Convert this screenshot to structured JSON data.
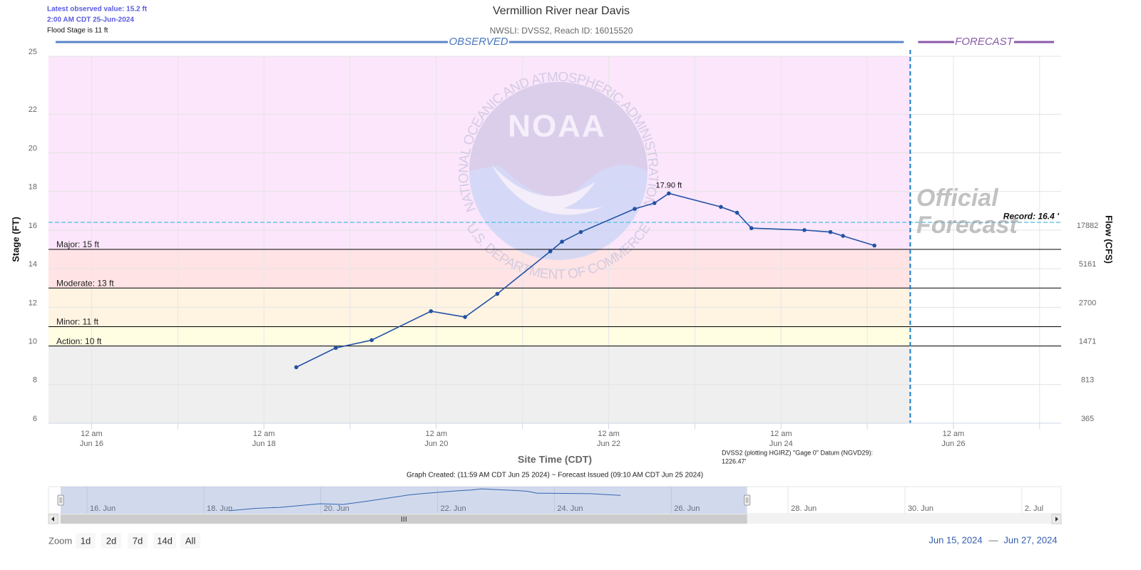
{
  "header": {
    "latest_value": "Latest observed value: 15.2 ft",
    "latest_time": "2:00 AM CDT 25-Jun-2024",
    "flood_stage": "Flood Stage is 11 ft"
  },
  "chart_data": {
    "type": "line",
    "title": "Vermillion River near Davis",
    "subtitle": "NWSLI: DVSS2, Reach ID: 16015520",
    "observed_label": "OBSERVED",
    "forecast_label": "FORECAST",
    "forecast_start": "2024-06-25T11:59",
    "watermark": [
      "Official",
      "Forecast"
    ],
    "logo": {
      "name": "NOAA",
      "top": "NATIONAL OCEANIC AND ATMOSPHERIC ADMINISTRATION",
      "bottom": "U.S. DEPARTMENT OF COMMERCE"
    },
    "ylabel": "Stage (FT)",
    "y2label": "Flow (CFS)",
    "xlabel": "Site Time (CDT)",
    "ylim": [
      6,
      25
    ],
    "yticks": [
      6,
      8,
      10,
      12,
      14,
      16,
      18,
      20,
      22,
      25
    ],
    "flow_ticks": [
      {
        "stage": 6,
        "flow": 365
      },
      {
        "stage": 8,
        "flow": 813
      },
      {
        "stage": 10,
        "flow": 1471
      },
      {
        "stage": 12,
        "flow": 2700
      },
      {
        "stage": 14,
        "flow": 5161
      },
      {
        "stage": 16,
        "flow": 17882
      }
    ],
    "xlim": [
      "2024-06-15T12:00",
      "2024-06-27T06:00"
    ],
    "xticks": [
      {
        "value": "2024-06-16T00:00",
        "time": "12 am",
        "date": "Jun 16"
      },
      {
        "value": "2024-06-18T00:00",
        "time": "12 am",
        "date": "Jun 18"
      },
      {
        "value": "2024-06-20T00:00",
        "time": "12 am",
        "date": "Jun 20"
      },
      {
        "value": "2024-06-22T00:00",
        "time": "12 am",
        "date": "Jun 22"
      },
      {
        "value": "2024-06-24T00:00",
        "time": "12 am",
        "date": "Jun 24"
      },
      {
        "value": "2024-06-26T00:00",
        "time": "12 am",
        "date": "Jun 26"
      }
    ],
    "xminorticks": [
      "2024-06-17T00:00",
      "2024-06-19T00:00",
      "2024-06-21T00:00",
      "2024-06-23T00:00",
      "2024-06-25T00:00",
      "2024-06-27T00:00"
    ],
    "grid": true,
    "base_band_color": "#efefef",
    "flood_bands": [
      {
        "label": "Action: 10 ft",
        "value": 10,
        "color": "#fffde2"
      },
      {
        "label": "Minor: 11 ft",
        "value": 11,
        "color": "#fff3e2"
      },
      {
        "label": "Moderate: 13 ft",
        "value": 13,
        "color": "#ffe3e5"
      },
      {
        "label": "Major: 15 ft",
        "value": 15,
        "color": "#fbe6fb"
      }
    ],
    "record": {
      "value": 16.4,
      "label": "Record: 16.4 '",
      "color": "#6cc3ea"
    },
    "series": [
      {
        "color": "#2352a4",
        "x": [
          "2024-06-18T09:00",
          "2024-06-18T20:00",
          "2024-06-19T06:00",
          "2024-06-19T22:30",
          "2024-06-20T08:00",
          "2024-06-20T17:00",
          "2024-06-21T07:45",
          "2024-06-21T11:00",
          "2024-06-21T16:15",
          "2024-06-22T07:15",
          "2024-06-22T12:45",
          "2024-06-22T16:45",
          "2024-06-23T07:15",
          "2024-06-23T11:45",
          "2024-06-23T15:45",
          "2024-06-24T06:30",
          "2024-06-24T13:45",
          "2024-06-24T17:15",
          "2024-06-25T02:00"
        ],
        "values": [
          8.9,
          9.9,
          10.3,
          11.8,
          11.5,
          12.7,
          14.9,
          15.4,
          15.9,
          17.1,
          17.4,
          17.9,
          17.2,
          16.9,
          16.1,
          16.0,
          15.9,
          15.7,
          15.2
        ],
        "value_labels": [
          null,
          null,
          null,
          null,
          null,
          null,
          null,
          null,
          null,
          null,
          null,
          "17.90 ft",
          null,
          null,
          null,
          null,
          null,
          null,
          null
        ]
      }
    ],
    "datum_note": [
      "DVSS2 (plotting HGIRZ) \"Gage 0\" Datum (NGVD29):",
      "1226.47'"
    ],
    "created_note": "Graph Created: (11:59 AM CDT Jun 25 2024) ~ Forecast Issued (09:10 AM CDT Jun 25 2024)"
  },
  "navigator": {
    "xlim": [
      "2024-06-15T07:00",
      "2024-07-02T15:00"
    ],
    "ylim": [
      7.7,
      18.8
    ],
    "labels": [
      {
        "value": "2024-06-16T00:00",
        "label": "16. Jun"
      },
      {
        "value": "2024-06-18T00:00",
        "label": "18. Jun"
      },
      {
        "value": "2024-06-20T00:00",
        "label": "20. Jun"
      },
      {
        "value": "2024-06-22T00:00",
        "label": "22. Jun"
      },
      {
        "value": "2024-06-24T00:00",
        "label": "24. Jun"
      },
      {
        "value": "2024-06-26T00:00",
        "label": "26. Jun"
      },
      {
        "value": "2024-06-28T00:00",
        "label": "28. Jun"
      },
      {
        "value": "2024-06-30T00:00",
        "label": "30. Jun"
      },
      {
        "value": "2024-07-02T00:00",
        "label": "2. Jul"
      }
    ]
  },
  "range_selector": {
    "zoom": "Zoom",
    "buttons": [
      "1d",
      "2d",
      "7d",
      "14d",
      "All"
    ],
    "from": "Jun 15, 2024",
    "separator": "—",
    "to": "Jun 27, 2024"
  }
}
